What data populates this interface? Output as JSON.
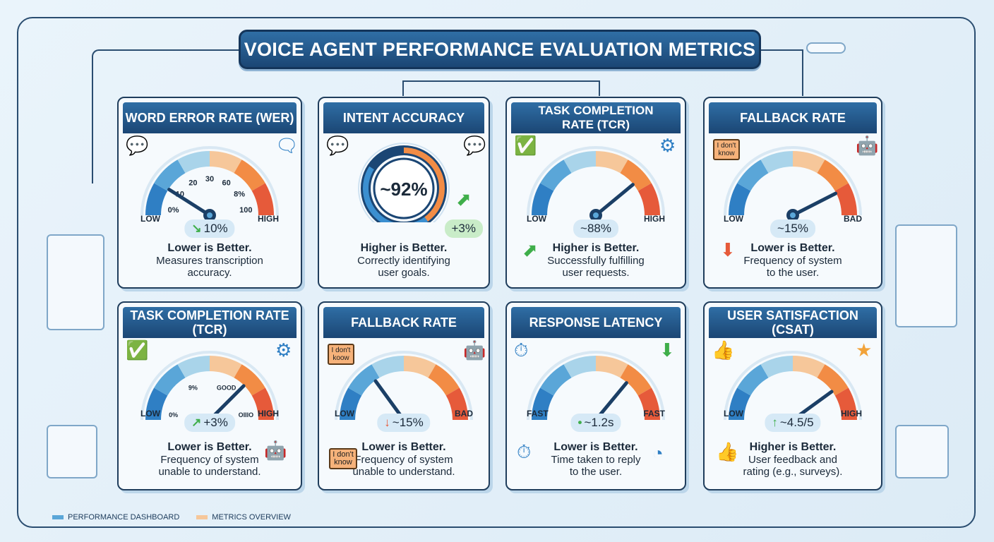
{
  "title": "VOICE AGENT PERFORMANCE EVALUATION METRICS",
  "colors": {
    "header": "#1f4e79",
    "low": "#2f7fc4",
    "mid": "#f6b27a",
    "high": "#e65a3a",
    "good": "#3fae4a"
  },
  "cards": [
    {
      "title": "WORD ERROR RATE (WER)",
      "type": "gauge",
      "needle": 0.18,
      "ticks": [
        "0%",
        "10",
        "20",
        "30",
        "60",
        "8%",
        "100"
      ],
      "low": "LOW",
      "high": "HIGH",
      "arrow": "↘",
      "arrow_color": "#3fae4a",
      "value": "10%",
      "better": "Lower is Better.",
      "desc": [
        "Measures transcription",
        "accuracy."
      ],
      "icons": [
        "chat-bubbles-icon",
        "message-exchange-icon"
      ]
    },
    {
      "title": "INTENT ACCURACY",
      "type": "ring",
      "value": "~92%",
      "progress": 0.92,
      "delta": "+3%",
      "better": "Higher is Better.",
      "desc": [
        "Correctly identifying",
        "user goals."
      ],
      "icons": [
        "chat-bubbles-icon",
        "chat-bubble-icon",
        "up-arrow-icon"
      ]
    },
    {
      "title": "TASK COMPLETION RATE (TCR)",
      "type": "gauge",
      "needle": 0.78,
      "ticks": [],
      "low": "LOW",
      "high": "HIGH",
      "arrow": "",
      "value": "~88%",
      "better": "Higher is Better.",
      "desc": [
        "Successfully fulfilling",
        "user requests."
      ],
      "icons": [
        "check-circle-icon",
        "gears-icon",
        "up-arrow-icon"
      ]
    },
    {
      "title": "FALLBACK RATE",
      "type": "gauge",
      "needle": 0.85,
      "ticks": [],
      "low": "LOW",
      "high": "BAD",
      "arrow": "",
      "value": "~15%",
      "better": "Lower is Better.",
      "desc": [
        "Frequency of system",
        "to the user."
      ],
      "sign": "I don't know",
      "icons": [
        "sign-icon",
        "robot-icon",
        "down-arrow-icon"
      ]
    },
    {
      "title": "TASK COMPLETION RATE (TCR)",
      "type": "gauge",
      "needle": 0.75,
      "ticks": [
        "0%",
        "9%",
        "GOOD",
        "OIIIO"
      ],
      "low": "LOW",
      "high": "HIGH",
      "arrow": "↗",
      "arrow_color": "#3fae4a",
      "value": "+3%",
      "better": "Lower is Better.",
      "desc": [
        "Frequency of system",
        "unable to understand."
      ],
      "icons": [
        "check-circle-icon",
        "gear-check-icon",
        "robot-icon"
      ]
    },
    {
      "title": "FALLBACK RATE",
      "type": "gauge",
      "needle": 0.3,
      "ticks": [],
      "low": "LOW",
      "high": "BAD",
      "arrow": "↓",
      "arrow_color": "#e65a3a",
      "value": "~15%",
      "better": "Lower is Better.",
      "desc": [
        "Frequency of system",
        "unable to understand."
      ],
      "sign": "I don't koow",
      "sign2": "I don't know",
      "icons": [
        "sign-icon",
        "robot-icon"
      ]
    },
    {
      "title": "RESPONSE LATENCY",
      "type": "gauge",
      "needle": 0.72,
      "ticks": [],
      "low": "FAST",
      "high": "FAST",
      "arrow": "•",
      "arrow_color": "#3fae4a",
      "value": "~1.2s",
      "better": "Lower is Better.",
      "desc": [
        "Time taken to reply",
        "to the user."
      ],
      "icons": [
        "stopwatch-icon",
        "down-arrow-icon",
        "stopwatch-icon",
        "loading-icon"
      ]
    },
    {
      "title": "USER SATISFACTION (CSAT)",
      "type": "gauge",
      "needle": 0.8,
      "ticks": [],
      "low": "LOW",
      "high": "HIGH",
      "arrow": "↑",
      "arrow_color": "#3fae4a",
      "value": "~4.5/5",
      "better": "Higher is Better.",
      "desc": [
        "User feedback and",
        "rating (e.g., surveys)."
      ],
      "icons": [
        "thumbs-up-icon",
        "stars-icon",
        "thumbs-up-icon"
      ]
    }
  ],
  "legend": [
    {
      "label": "PERFORMANCE DASHBOARD",
      "color": "#5aa6d8"
    },
    {
      "label": "METRICS OVERVIEW",
      "color": "#f6c79a"
    }
  ]
}
